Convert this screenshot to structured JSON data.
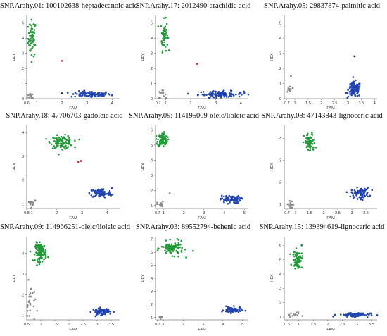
{
  "colors": {
    "green": "#1f9a37",
    "blue": "#2044b0",
    "gray": "#8a8a8a",
    "red": "#d93030",
    "black": "#222222"
  },
  "panels": [
    {
      "title": "SNP.Arahy.01: 100102638-heptadecanoic acid",
      "chart_data": {
        "type": "scatter",
        "xlabel": "FAM",
        "ylabel": "HEX",
        "xlim": [
          0.6,
          4.3
        ],
        "ylim": [
          0,
          5.5
        ],
        "xticks": [
          0.6,
          1,
          2,
          3,
          4
        ],
        "xtick_labels": [
          "0.6",
          "1",
          "2",
          "3",
          "4"
        ],
        "yticks": [
          0,
          1,
          2,
          3,
          4,
          5
        ],
        "ytick_labels": [
          "0",
          "1",
          "2",
          "3",
          "4",
          "5"
        ],
        "clusters": [
          {
            "color": "green",
            "cx": 0.82,
            "cy": 4.0,
            "sx": 0.08,
            "sy": 0.6,
            "n": 55
          },
          {
            "color": "blue",
            "cx": 3.15,
            "cy": 0.28,
            "sx": 0.4,
            "sy": 0.1,
            "n": 95
          },
          {
            "color": "gray",
            "cx": 0.8,
            "cy": 0.2,
            "sx": 0.08,
            "sy": 0.12,
            "n": 12
          }
        ],
        "points": [
          {
            "x": 2.0,
            "y": 2.5,
            "color": "red"
          },
          {
            "x": 2.0,
            "y": 0.35,
            "color": "black"
          }
        ]
      }
    },
    {
      "title": "SNP.Arahy.17: 2012490-arachidic acid",
      "chart_data": {
        "type": "scatter",
        "xlabel": "FAM",
        "ylabel": "HEX",
        "xlim": [
          0.6,
          4.3
        ],
        "ylim": [
          0,
          5.5
        ],
        "xticks": [
          0.7,
          1,
          2,
          3,
          4
        ],
        "xtick_labels": [
          "0.7",
          "1",
          "2",
          "3",
          "4"
        ],
        "yticks": [
          0,
          1,
          2,
          3,
          4,
          5
        ],
        "ytick_labels": [
          "0",
          "1",
          "2",
          "3",
          "4",
          "5"
        ],
        "clusters": [
          {
            "color": "green",
            "cx": 0.95,
            "cy": 4.2,
            "sx": 0.07,
            "sy": 0.5,
            "n": 50
          },
          {
            "color": "blue",
            "cx": 3.2,
            "cy": 0.3,
            "sx": 0.45,
            "sy": 0.1,
            "n": 100
          },
          {
            "color": "gray",
            "cx": 0.85,
            "cy": 0.25,
            "sx": 0.08,
            "sy": 0.15,
            "n": 14
          }
        ],
        "points": [
          {
            "x": 2.25,
            "y": 2.3,
            "color": "red"
          }
        ]
      }
    },
    {
      "title": "SNP.Arahy.05: 29837874-palmitic acid",
      "chart_data": {
        "type": "scatter",
        "xlabel": "FAM",
        "ylabel": "HEX",
        "xlim": [
          0.6,
          4.1
        ],
        "ylim": [
          0,
          5.5
        ],
        "xticks": [
          0.7,
          1,
          1.5,
          2,
          2.5,
          3,
          3.5,
          4
        ],
        "xtick_labels": [
          "0.7",
          "1",
          "1.5",
          "2",
          "2.5",
          "3",
          "3.5",
          "4"
        ],
        "yticks": [
          0,
          1,
          2,
          3,
          4,
          5
        ],
        "ytick_labels": [
          "0",
          "1",
          "2",
          "3",
          "4",
          "5"
        ],
        "clusters": [
          {
            "color": "blue",
            "cx": 3.25,
            "cy": 0.6,
            "sx": 0.12,
            "sy": 0.25,
            "n": 120
          },
          {
            "color": "gray",
            "cx": 0.8,
            "cy": 0.6,
            "sx": 0.05,
            "sy": 0.15,
            "n": 10
          }
        ],
        "points": [
          {
            "x": 3.25,
            "y": 2.8,
            "color": "black"
          },
          {
            "x": 0.85,
            "y": 1.5,
            "color": "gray"
          }
        ]
      }
    },
    {
      "title": "SNP.Arahy.18: 47706703-gadoleic acid",
      "chart_data": {
        "type": "scatter",
        "xlabel": "FAM",
        "ylabel": "HEX",
        "xlim": [
          0.8,
          4.5
        ],
        "ylim": [
          0.8,
          4.3
        ],
        "xticks": [
          0.8,
          1,
          2,
          3,
          4
        ],
        "xtick_labels": [
          "0.8",
          "1",
          "2",
          "3",
          "4"
        ],
        "yticks": [
          1,
          2,
          3,
          4
        ],
        "ytick_labels": [
          "1",
          "2",
          "3",
          "4"
        ],
        "clusters": [
          {
            "color": "green",
            "cx": 2.2,
            "cy": 3.6,
            "sx": 0.22,
            "sy": 0.13,
            "n": 110
          },
          {
            "color": "blue",
            "cx": 3.75,
            "cy": 1.45,
            "sx": 0.22,
            "sy": 0.1,
            "n": 90
          },
          {
            "color": "gray",
            "cx": 1.0,
            "cy": 1.05,
            "sx": 0.1,
            "sy": 0.1,
            "n": 12
          }
        ],
        "points": [
          {
            "x": 2.85,
            "y": 2.75,
            "color": "red"
          },
          {
            "x": 2.95,
            "y": 2.8,
            "color": "red"
          }
        ]
      }
    },
    {
      "title": "SNP.Arahy.09: 114195009-oleic/lioleic acid",
      "chart_data": {
        "type": "scatter",
        "xlabel": "FAM",
        "ylabel": "HEX",
        "xlim": [
          0.6,
          5.2
        ],
        "ylim": [
          0.8,
          6.3
        ],
        "xticks": [
          0.7,
          1,
          2,
          3,
          4,
          5
        ],
        "xtick_labels": [
          "0.7",
          "1",
          "2",
          "3",
          "4",
          "5"
        ],
        "yticks": [
          1,
          2,
          3,
          4,
          5,
          6
        ],
        "ytick_labels": [
          "1",
          "2",
          "3",
          "4",
          "5",
          "6"
        ],
        "clusters": [
          {
            "color": "green",
            "cx": 0.95,
            "cy": 5.35,
            "sx": 0.12,
            "sy": 0.22,
            "n": 90
          },
          {
            "color": "blue",
            "cx": 4.3,
            "cy": 1.4,
            "sx": 0.25,
            "sy": 0.13,
            "n": 80
          },
          {
            "color": "gray",
            "cx": 0.85,
            "cy": 1.05,
            "sx": 0.08,
            "sy": 0.1,
            "n": 12
          }
        ],
        "points": [
          {
            "x": 1.3,
            "y": 1.8,
            "color": "gray"
          }
        ]
      }
    },
    {
      "title": "SNP.Arahy.08: 47143843-lignoceric acid",
      "chart_data": {
        "type": "scatter",
        "xlabel": "FAM",
        "ylabel": "HEX",
        "xlim": [
          0.6,
          3.9
        ],
        "ylim": [
          0.8,
          4.6
        ],
        "xticks": [
          0.7,
          1,
          1.5,
          2,
          2.5,
          3,
          3.5
        ],
        "xtick_labels": [
          "0.7",
          "1",
          "1.5",
          "2",
          "2.5",
          "3",
          "3.5"
        ],
        "yticks": [
          1,
          2,
          3,
          4
        ],
        "ytick_labels": [
          "1",
          "2",
          "3",
          "4"
        ],
        "clusters": [
          {
            "color": "green",
            "cx": 1.5,
            "cy": 3.8,
            "sx": 0.1,
            "sy": 0.22,
            "n": 65
          },
          {
            "color": "blue",
            "cx": 3.3,
            "cy": 1.5,
            "sx": 0.16,
            "sy": 0.12,
            "n": 80
          },
          {
            "color": "gray",
            "cx": 0.85,
            "cy": 1.0,
            "sx": 0.08,
            "sy": 0.08,
            "n": 14
          }
        ],
        "points": []
      }
    },
    {
      "title": "SNP.Arahy.09: 114966251-oleic/lioleic acid",
      "chart_data": {
        "type": "scatter",
        "xlabel": "FAM",
        "ylabel": "HEX",
        "xlim": [
          0.5,
          3.8
        ],
        "ylim": [
          0.8,
          4.8
        ],
        "xticks": [
          0.5,
          1,
          1.5,
          2,
          2.5,
          3,
          3.5
        ],
        "xtick_labels": [
          "0.5",
          "1",
          "1.5",
          "2",
          "2.5",
          "3",
          "3.5"
        ],
        "yticks": [
          1,
          2,
          3,
          4
        ],
        "ytick_labels": [
          "1",
          "2",
          "3",
          "4"
        ],
        "clusters": [
          {
            "color": "green",
            "cx": 1.0,
            "cy": 4.05,
            "sx": 0.1,
            "sy": 0.22,
            "n": 100
          },
          {
            "color": "blue",
            "cx": 3.15,
            "cy": 1.2,
            "sx": 0.16,
            "sy": 0.08,
            "n": 75
          },
          {
            "color": "gray",
            "cx": 0.65,
            "cy": 1.6,
            "sx": 0.08,
            "sy": 0.5,
            "n": 25
          }
        ],
        "points": []
      }
    },
    {
      "title": "SNP.Arahy.03: 89552794-behenic acid",
      "chart_data": {
        "type": "scatter",
        "xlabel": "FAM",
        "ylabel": "HEX",
        "xlim": [
          0.6,
          5.3
        ],
        "ylim": [
          0.8,
          7.2
        ],
        "xticks": [
          0.7,
          1,
          2,
          3,
          4,
          5
        ],
        "xtick_labels": [
          "0.7",
          "1",
          "2",
          "3",
          "4",
          "5"
        ],
        "yticks": [
          1,
          2,
          3,
          4,
          5,
          6,
          7
        ],
        "ytick_labels": [
          "1",
          "2",
          "3",
          "4",
          "5",
          "6",
          "7"
        ],
        "clusters": [
          {
            "color": "green",
            "cx": 1.45,
            "cy": 6.3,
            "sx": 0.28,
            "sy": 0.25,
            "n": 90
          },
          {
            "color": "blue",
            "cx": 4.5,
            "cy": 1.55,
            "sx": 0.22,
            "sy": 0.12,
            "n": 75
          },
          {
            "color": "gray",
            "cx": 0.85,
            "cy": 1.0,
            "sx": 0.05,
            "sy": 0.05,
            "n": 8
          }
        ],
        "points": [
          {
            "x": 2.5,
            "y": 6.1,
            "color": "green"
          },
          {
            "x": 2.15,
            "y": 5.6,
            "color": "green"
          }
        ]
      }
    },
    {
      "title": "SNP.Arahy.15: 139394619-lignoceric acid",
      "chart_data": {
        "type": "scatter",
        "xlabel": "FAM",
        "ylabel": "HEX",
        "xlim": [
          0.5,
          3.7
        ],
        "ylim": [
          0.8,
          6.6
        ],
        "xticks": [
          0.6,
          1,
          1.5,
          2,
          2.5,
          3,
          3.5
        ],
        "xtick_labels": [
          "0.6",
          "1",
          "1.5",
          "2",
          "2.5",
          "3",
          "3.5"
        ],
        "yticks": [
          1,
          2,
          3,
          4,
          5,
          6
        ],
        "ytick_labels": [
          "1",
          "2",
          "3",
          "4",
          "5",
          "6"
        ],
        "clusters": [
          {
            "color": "green",
            "cx": 0.95,
            "cy": 5.0,
            "sx": 0.08,
            "sy": 0.3,
            "n": 65
          },
          {
            "color": "blue",
            "cx": 2.9,
            "cy": 1.15,
            "sx": 0.28,
            "sy": 0.08,
            "n": 70
          },
          {
            "color": "gray",
            "cx": 0.85,
            "cy": 1.15,
            "sx": 0.1,
            "sy": 0.08,
            "n": 12
          }
        ],
        "points": [
          {
            "x": 1.1,
            "y": 6.0,
            "color": "green"
          }
        ]
      }
    }
  ]
}
